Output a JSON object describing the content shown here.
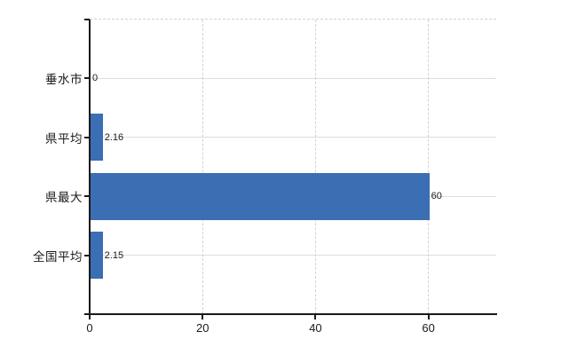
{
  "chart_data": {
    "type": "bar",
    "orientation": "horizontal",
    "title": "",
    "xlabel": "",
    "ylabel": "",
    "categories": [
      "垂水市",
      "県平均",
      "県最大",
      "全国平均"
    ],
    "values": [
      0,
      2.16,
      60,
      2.15
    ],
    "value_labels": [
      "0",
      "2.16",
      "60",
      "2.15"
    ],
    "x_ticks": [
      0,
      20,
      40,
      60
    ],
    "x_tick_labels": [
      "0",
      "20",
      "40",
      "60"
    ],
    "xlim": [
      0,
      72
    ],
    "grid": true,
    "legend": false,
    "colors": {
      "bar": "#3b6eb2",
      "axis": "#1a1a1a",
      "grid_horizontal": "#d9e1d9",
      "grid_vertical": "#d2d2d2",
      "text": "#1a1a1a",
      "background": "#ffffff"
    }
  }
}
